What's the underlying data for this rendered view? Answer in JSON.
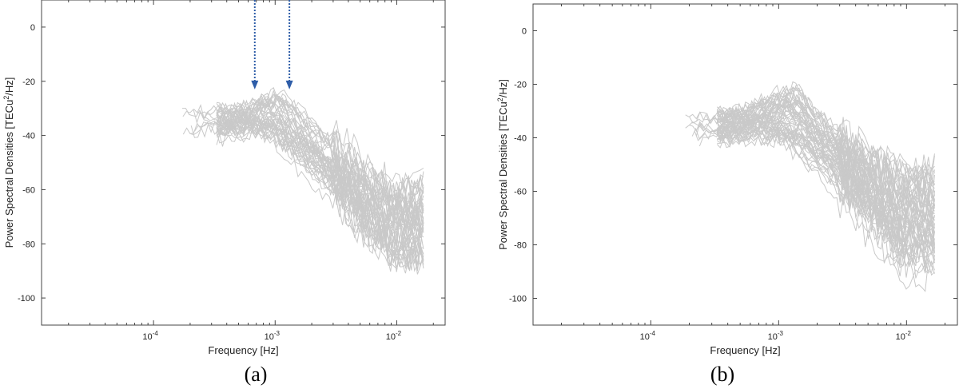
{
  "chart_data": [
    {
      "type": "line",
      "panel_label": "(a)",
      "xlabel": "Frequency [Hz]",
      "ylabel_parts": [
        "Power Spectral Densities [TECu",
        "2",
        "/Hz]"
      ],
      "x_scale": "log",
      "xlim": [
        1.2e-05,
        0.025
      ],
      "ylim": [
        -110,
        10
      ],
      "yticks": [
        0,
        -20,
        -40,
        -60,
        -80,
        -100
      ],
      "xticks": [
        {
          "value": 0.0001,
          "base": "10",
          "exp": "-4"
        },
        {
          "value": 0.001,
          "base": "10",
          "exp": "-3"
        },
        {
          "value": 0.01,
          "base": "10",
          "exp": "-2"
        }
      ],
      "series_color": "#c9c9c9",
      "arrow_color": "#2e5da8",
      "arrows": [
        {
          "x": 0.00068,
          "y": -23
        },
        {
          "x": 0.00131,
          "y": -23
        }
      ],
      "series_count": 45,
      "fmin": 0.00033,
      "fmax": 0.0166,
      "low_start": [
        0.00017,
        0.00025
      ],
      "peak_centers": [
        0.0007,
        0.0013
      ],
      "peak_level": [
        -40,
        -24
      ],
      "tail_level": [
        -55,
        -85
      ],
      "seed": 11
    },
    {
      "type": "line",
      "panel_label": "(b)",
      "xlabel": "Frequency [Hz]",
      "ylabel_parts": [
        "Power Spectral Densities [TECu",
        "2",
        "/Hz]"
      ],
      "x_scale": "log",
      "xlim": [
        1.2e-05,
        0.025
      ],
      "ylim": [
        -110,
        10
      ],
      "yticks": [
        0,
        -20,
        -40,
        -60,
        -80,
        -100
      ],
      "xticks": [
        {
          "value": 0.0001,
          "base": "10",
          "exp": "-4"
        },
        {
          "value": 0.001,
          "base": "10",
          "exp": "-3"
        },
        {
          "value": 0.01,
          "base": "10",
          "exp": "-2"
        }
      ],
      "series_color": "#c9c9c9",
      "arrows": [],
      "series_count": 55,
      "fmin": 0.00033,
      "fmax": 0.0166,
      "low_start": [
        0.00017,
        0.00025
      ],
      "peak_centers": [
        0.0009,
        0.0015
      ],
      "peak_level": [
        -42,
        -20
      ],
      "tail_level": [
        -50,
        -92
      ],
      "seed": 29
    }
  ]
}
